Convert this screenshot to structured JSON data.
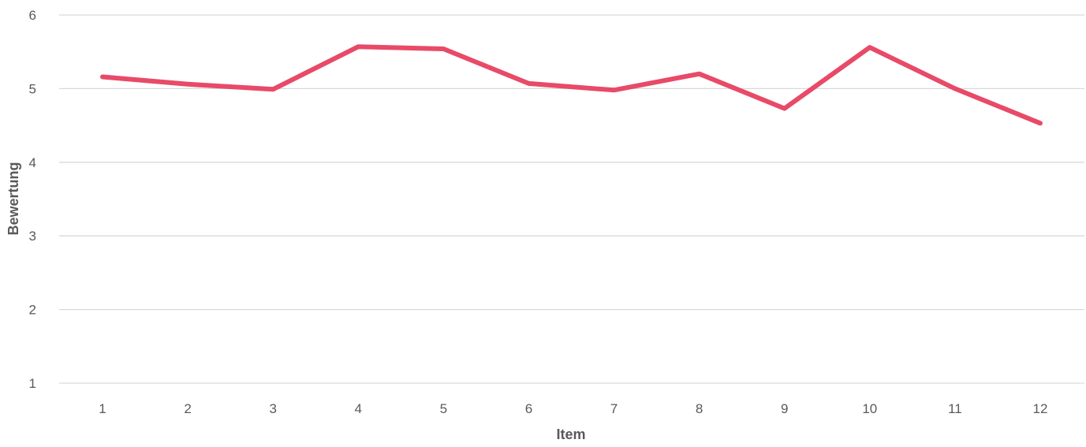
{
  "chart_data": {
    "type": "line",
    "title": "",
    "xlabel": "Item",
    "ylabel": "Bewertung",
    "categories": [
      "1",
      "2",
      "3",
      "4",
      "5",
      "6",
      "7",
      "8",
      "9",
      "10",
      "11",
      "12"
    ],
    "series": [
      {
        "color": "#e84a68",
        "values": [
          5.16,
          5.06,
          4.99,
          5.57,
          5.54,
          5.07,
          4.98,
          5.2,
          4.73,
          5.56,
          5.0,
          4.53
        ]
      }
    ],
    "ylim": [
      1,
      6
    ],
    "yticks": [
      "1",
      "2",
      "3",
      "4",
      "5",
      "6"
    ],
    "grid": true,
    "legend": "none"
  }
}
